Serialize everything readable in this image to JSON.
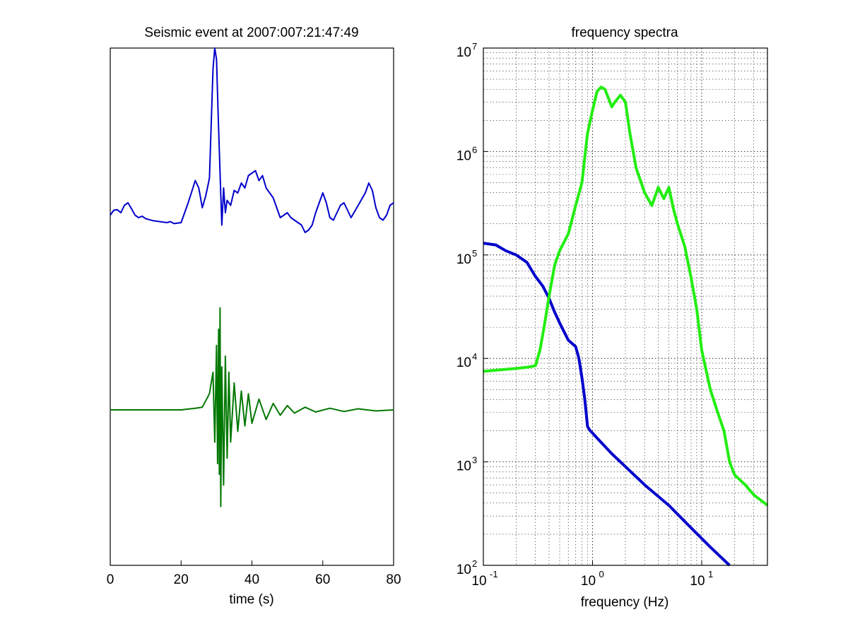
{
  "chart_data": [
    {
      "type": "line",
      "title": "Seismic event at 2007:007:21:47:49",
      "xlabel": "time (s)",
      "ylabel": "",
      "xlim": [
        0,
        80
      ],
      "xticks": [
        "0",
        "20",
        "40",
        "60",
        "80"
      ],
      "yticks": "none",
      "grid": false,
      "series": [
        {
          "color": "#0000cc",
          "note_offset_row": "upper",
          "x": [
            0,
            1,
            2,
            3,
            4,
            5,
            6,
            7,
            8,
            9,
            10,
            11,
            12,
            14,
            16,
            17,
            18,
            20,
            22,
            24,
            25,
            26,
            27,
            28,
            29,
            29.5,
            30,
            30.5,
            31,
            31.5,
            32,
            32.5,
            33,
            34,
            35,
            36,
            37,
            38,
            39,
            40,
            41,
            42,
            43,
            44,
            45,
            46,
            47,
            48,
            49,
            50,
            51,
            52,
            53,
            54,
            55,
            56,
            57,
            58,
            59,
            60,
            61,
            62,
            63,
            65,
            66,
            67,
            68,
            70,
            72,
            73,
            74,
            75,
            76,
            77,
            78,
            79,
            80
          ],
          "y": [
            0.05,
            0.15,
            0.16,
            0.1,
            0.25,
            0.3,
            0.18,
            0.05,
            0.0,
            0.03,
            -0.02,
            -0.04,
            -0.06,
            -0.08,
            -0.1,
            -0.08,
            -0.12,
            -0.1,
            0.3,
            0.75,
            0.6,
            0.2,
            0.45,
            0.8,
            3.0,
            3.5,
            3.2,
            2.0,
            0.9,
            -0.15,
            0.6,
            0.1,
            0.35,
            0.25,
            0.55,
            0.5,
            0.7,
            0.6,
            0.85,
            0.9,
            0.95,
            0.75,
            0.85,
            0.6,
            0.5,
            0.4,
            0.2,
            0.0,
            0.05,
            0.1,
            0.0,
            -0.05,
            -0.1,
            -0.15,
            -0.3,
            -0.25,
            -0.15,
            0.1,
            0.3,
            0.5,
            0.3,
            0.0,
            -0.05,
            0.25,
            0.3,
            0.15,
            0.0,
            0.25,
            0.5,
            0.7,
            0.55,
            0.2,
            0.0,
            -0.05,
            0.05,
            0.25,
            0.3
          ]
        },
        {
          "color": "#007700",
          "note_offset_row": "lower",
          "x": [
            0,
            5,
            10,
            15,
            20,
            24,
            26,
            28,
            29,
            29.5,
            30,
            30.3,
            30.6,
            30.8,
            31,
            31.2,
            31.5,
            32,
            32.5,
            33,
            33.5,
            34,
            35,
            36,
            37,
            38,
            39,
            40,
            42,
            44,
            46,
            48,
            50,
            52,
            55,
            58,
            62,
            66,
            70,
            75,
            80
          ],
          "y": [
            0.0,
            0.0,
            0.0,
            0.0,
            0.0,
            0.03,
            0.05,
            0.3,
            0.7,
            -0.6,
            1.2,
            -1.0,
            1.5,
            -1.2,
            1.9,
            -1.8,
            0.8,
            -1.4,
            1.0,
            -0.9,
            0.7,
            -0.6,
            0.5,
            -0.4,
            0.35,
            -0.3,
            0.3,
            -0.25,
            0.2,
            -0.18,
            0.12,
            -0.1,
            0.08,
            -0.06,
            0.05,
            -0.04,
            0.03,
            -0.03,
            0.02,
            -0.02,
            0.0
          ]
        }
      ]
    },
    {
      "type": "line",
      "title": "frequency spectra",
      "xlabel": "frequency (Hz)",
      "ylabel": "",
      "xscale": "log",
      "yscale": "log",
      "xlim": [
        0.1,
        40
      ],
      "ylim": [
        100,
        10000000
      ],
      "xticks": [
        {
          "base": "10",
          "exp": "-1",
          "value": 0.1
        },
        {
          "base": "10",
          "exp": "0",
          "value": 1
        },
        {
          "base": "10",
          "exp": "1",
          "value": 10
        }
      ],
      "yticks": [
        {
          "base": "10",
          "exp": "2",
          "value": 100
        },
        {
          "base": "10",
          "exp": "3",
          "value": 1000
        },
        {
          "base": "10",
          "exp": "4",
          "value": 10000
        },
        {
          "base": "10",
          "exp": "5",
          "value": 100000
        },
        {
          "base": "10",
          "exp": "6",
          "value": 1000000
        },
        {
          "base": "10",
          "exp": "7",
          "value": 10000000
        }
      ],
      "grid": true,
      "series": [
        {
          "color": "#0000cc",
          "x": [
            0.1,
            0.13,
            0.16,
            0.2,
            0.25,
            0.3,
            0.35,
            0.4,
            0.45,
            0.5,
            0.55,
            0.6,
            0.7,
            0.75,
            0.8,
            0.85,
            0.9,
            0.95,
            1.0,
            1.1,
            1.5,
            2,
            3,
            5,
            8,
            12,
            18
          ],
          "y": [
            130000,
            125000,
            110000,
            100000,
            85000,
            62000,
            50000,
            38000,
            28000,
            22000,
            18000,
            15000,
            13000,
            10000,
            6500,
            4000,
            2200,
            2000,
            1900,
            1700,
            1200,
            900,
            600,
            380,
            230,
            150,
            100
          ]
        },
        {
          "color": "#22ee11",
          "x": [
            0.1,
            0.15,
            0.2,
            0.25,
            0.3,
            0.33,
            0.36,
            0.4,
            0.45,
            0.5,
            0.6,
            0.7,
            0.8,
            0.9,
            1.0,
            1.1,
            1.2,
            1.3,
            1.5,
            1.6,
            1.8,
            2.0,
            2.2,
            2.5,
            3.0,
            3.5,
            4.0,
            4.5,
            5.0,
            5.5,
            6.0,
            7.0,
            8.0,
            9.0,
            10,
            12,
            14,
            16,
            18,
            20,
            25,
            30,
            40
          ],
          "y": [
            7500,
            7800,
            8000,
            8200,
            8500,
            12000,
            20000,
            40000,
            80000,
            110000,
            160000,
            300000,
            500000,
            1500000,
            2500000,
            3800000,
            4200000,
            4000000,
            2700000,
            3000000,
            3500000,
            3000000,
            1500000,
            700000,
            400000,
            300000,
            450000,
            350000,
            450000,
            280000,
            200000,
            120000,
            60000,
            30000,
            12000,
            5000,
            3000,
            2000,
            1000,
            750,
            600,
            480,
            380
          ]
        }
      ]
    }
  ]
}
